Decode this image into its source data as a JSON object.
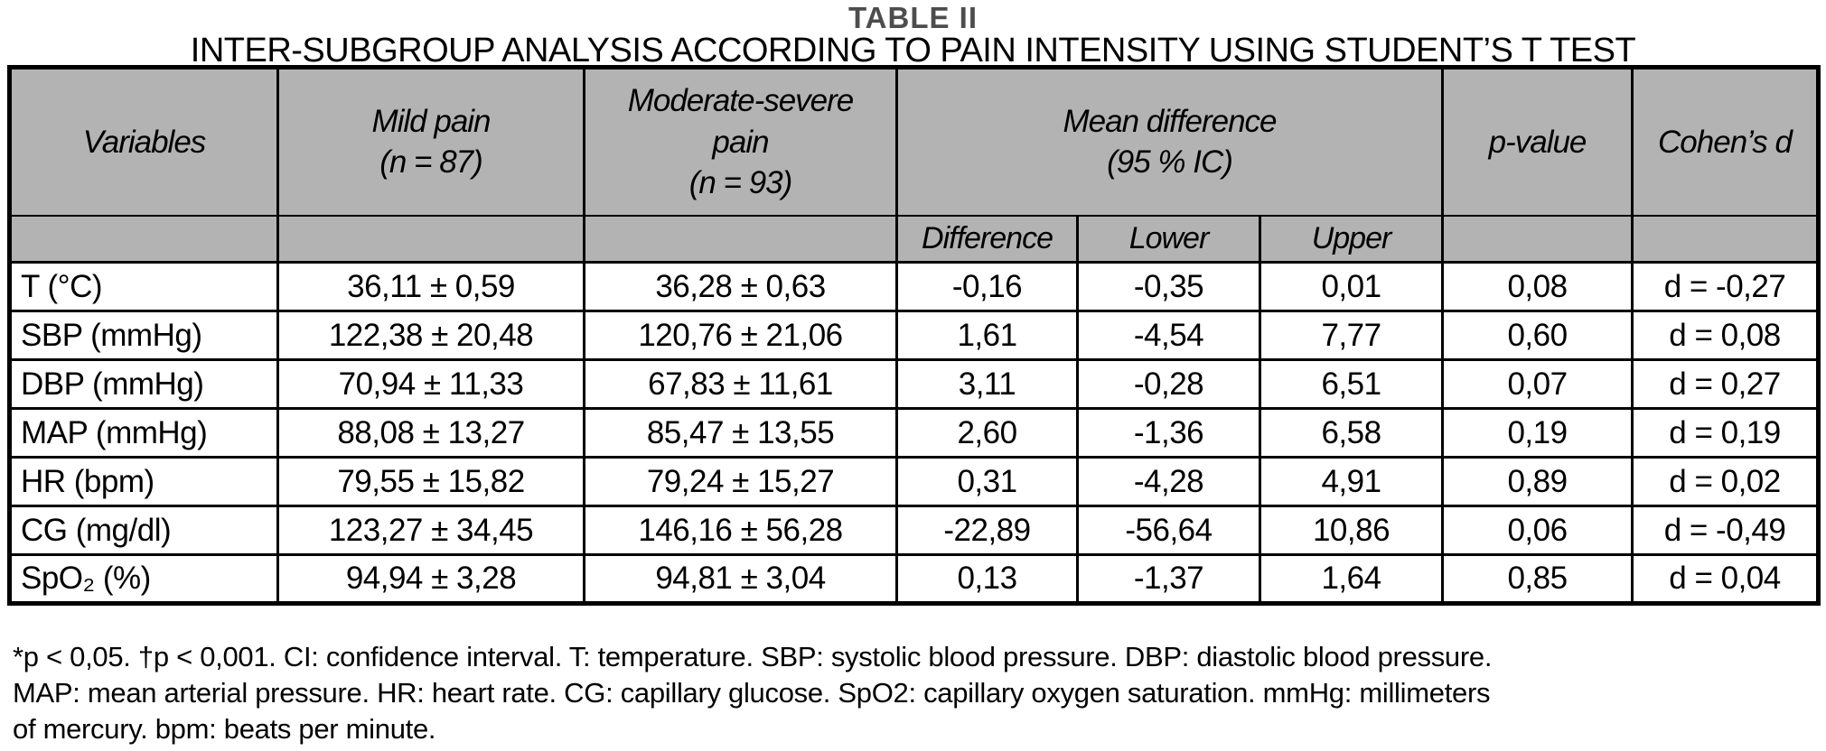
{
  "page": {
    "title": "TABLE II",
    "subtitle": "INTER-SUBGROUP ANALYSIS ACCORDING TO PAIN INTENSITY USING STUDENT’S T TEST"
  },
  "table": {
    "header": {
      "variables": "Variables",
      "mild_pain": "Mild pain\n(n = 87)",
      "moderate_pain": "Moderate-severe\npain\n(n = 93)",
      "mean_difference": "Mean difference\n(95 % IC)",
      "p_value": "p-value",
      "cohens_d": "Cohen’s d",
      "sub_difference": "Difference",
      "sub_lower": "Lower",
      "sub_upper": "Upper"
    },
    "rows": [
      {
        "variable": "T (°C)",
        "mild": "36,11 ± 0,59",
        "moderate": "36,28 ± 0,63",
        "difference": "-0,16",
        "lower": "-0,35",
        "upper": "0,01",
        "p": "0,08",
        "d": "d = -0,27"
      },
      {
        "variable": "SBP (mmHg)",
        "mild": "122,38 ± 20,48",
        "moderate": "120,76 ± 21,06",
        "difference": "1,61",
        "lower": "-4,54",
        "upper": "7,77",
        "p": "0,60",
        "d": "d = 0,08"
      },
      {
        "variable": "DBP (mmHg)",
        "mild": "70,94 ± 11,33",
        "moderate": "67,83 ± 11,61",
        "difference": "3,11",
        "lower": "-0,28",
        "upper": "6,51",
        "p": "0,07",
        "d": "d = 0,27"
      },
      {
        "variable": "MAP (mmHg)",
        "mild": "88,08 ± 13,27",
        "moderate": "85,47 ± 13,55",
        "difference": "2,60",
        "lower": "-1,36",
        "upper": "6,58",
        "p": "0,19",
        "d": "d = 0,19"
      },
      {
        "variable": "HR (bpm)",
        "mild": "79,55 ± 15,82",
        "moderate": "79,24 ± 15,27",
        "difference": "0,31",
        "lower": "-4,28",
        "upper": "4,91",
        "p": "0,89",
        "d": "d = 0,02"
      },
      {
        "variable": "CG (mg/dl)",
        "mild": "123,27 ± 34,45",
        "moderate": "146,16 ± 56,28",
        "difference": "-22,89",
        "lower": "-56,64",
        "upper": "10,86",
        "p": "0,06",
        "d": "d = -0,49"
      },
      {
        "variable": "SpO₂ (%)",
        "mild": "94,94 ± 3,28",
        "moderate": "94,81 ± 3,04",
        "difference": "0,13",
        "lower": "-1,37",
        "upper": "1,64",
        "p": "0,85",
        "d": "d = 0,04"
      }
    ]
  },
  "footnote": {
    "lines": [
      "*p < 0,05. †p < 0,001. CI: confidence interval. T: temperature. SBP: systolic blood pressure. DBP: diastolic blood pressure.",
      "MAP: mean arterial pressure. HR: heart rate. CG: capillary glucose. SpO2: capillary oxygen saturation. mmHg: millimeters",
      "of mercury. bpm: beats per minute."
    ]
  },
  "colors": {
    "header_bg": "#b3b3b3",
    "border": "#000000",
    "title_color": "#4d4d4d"
  }
}
